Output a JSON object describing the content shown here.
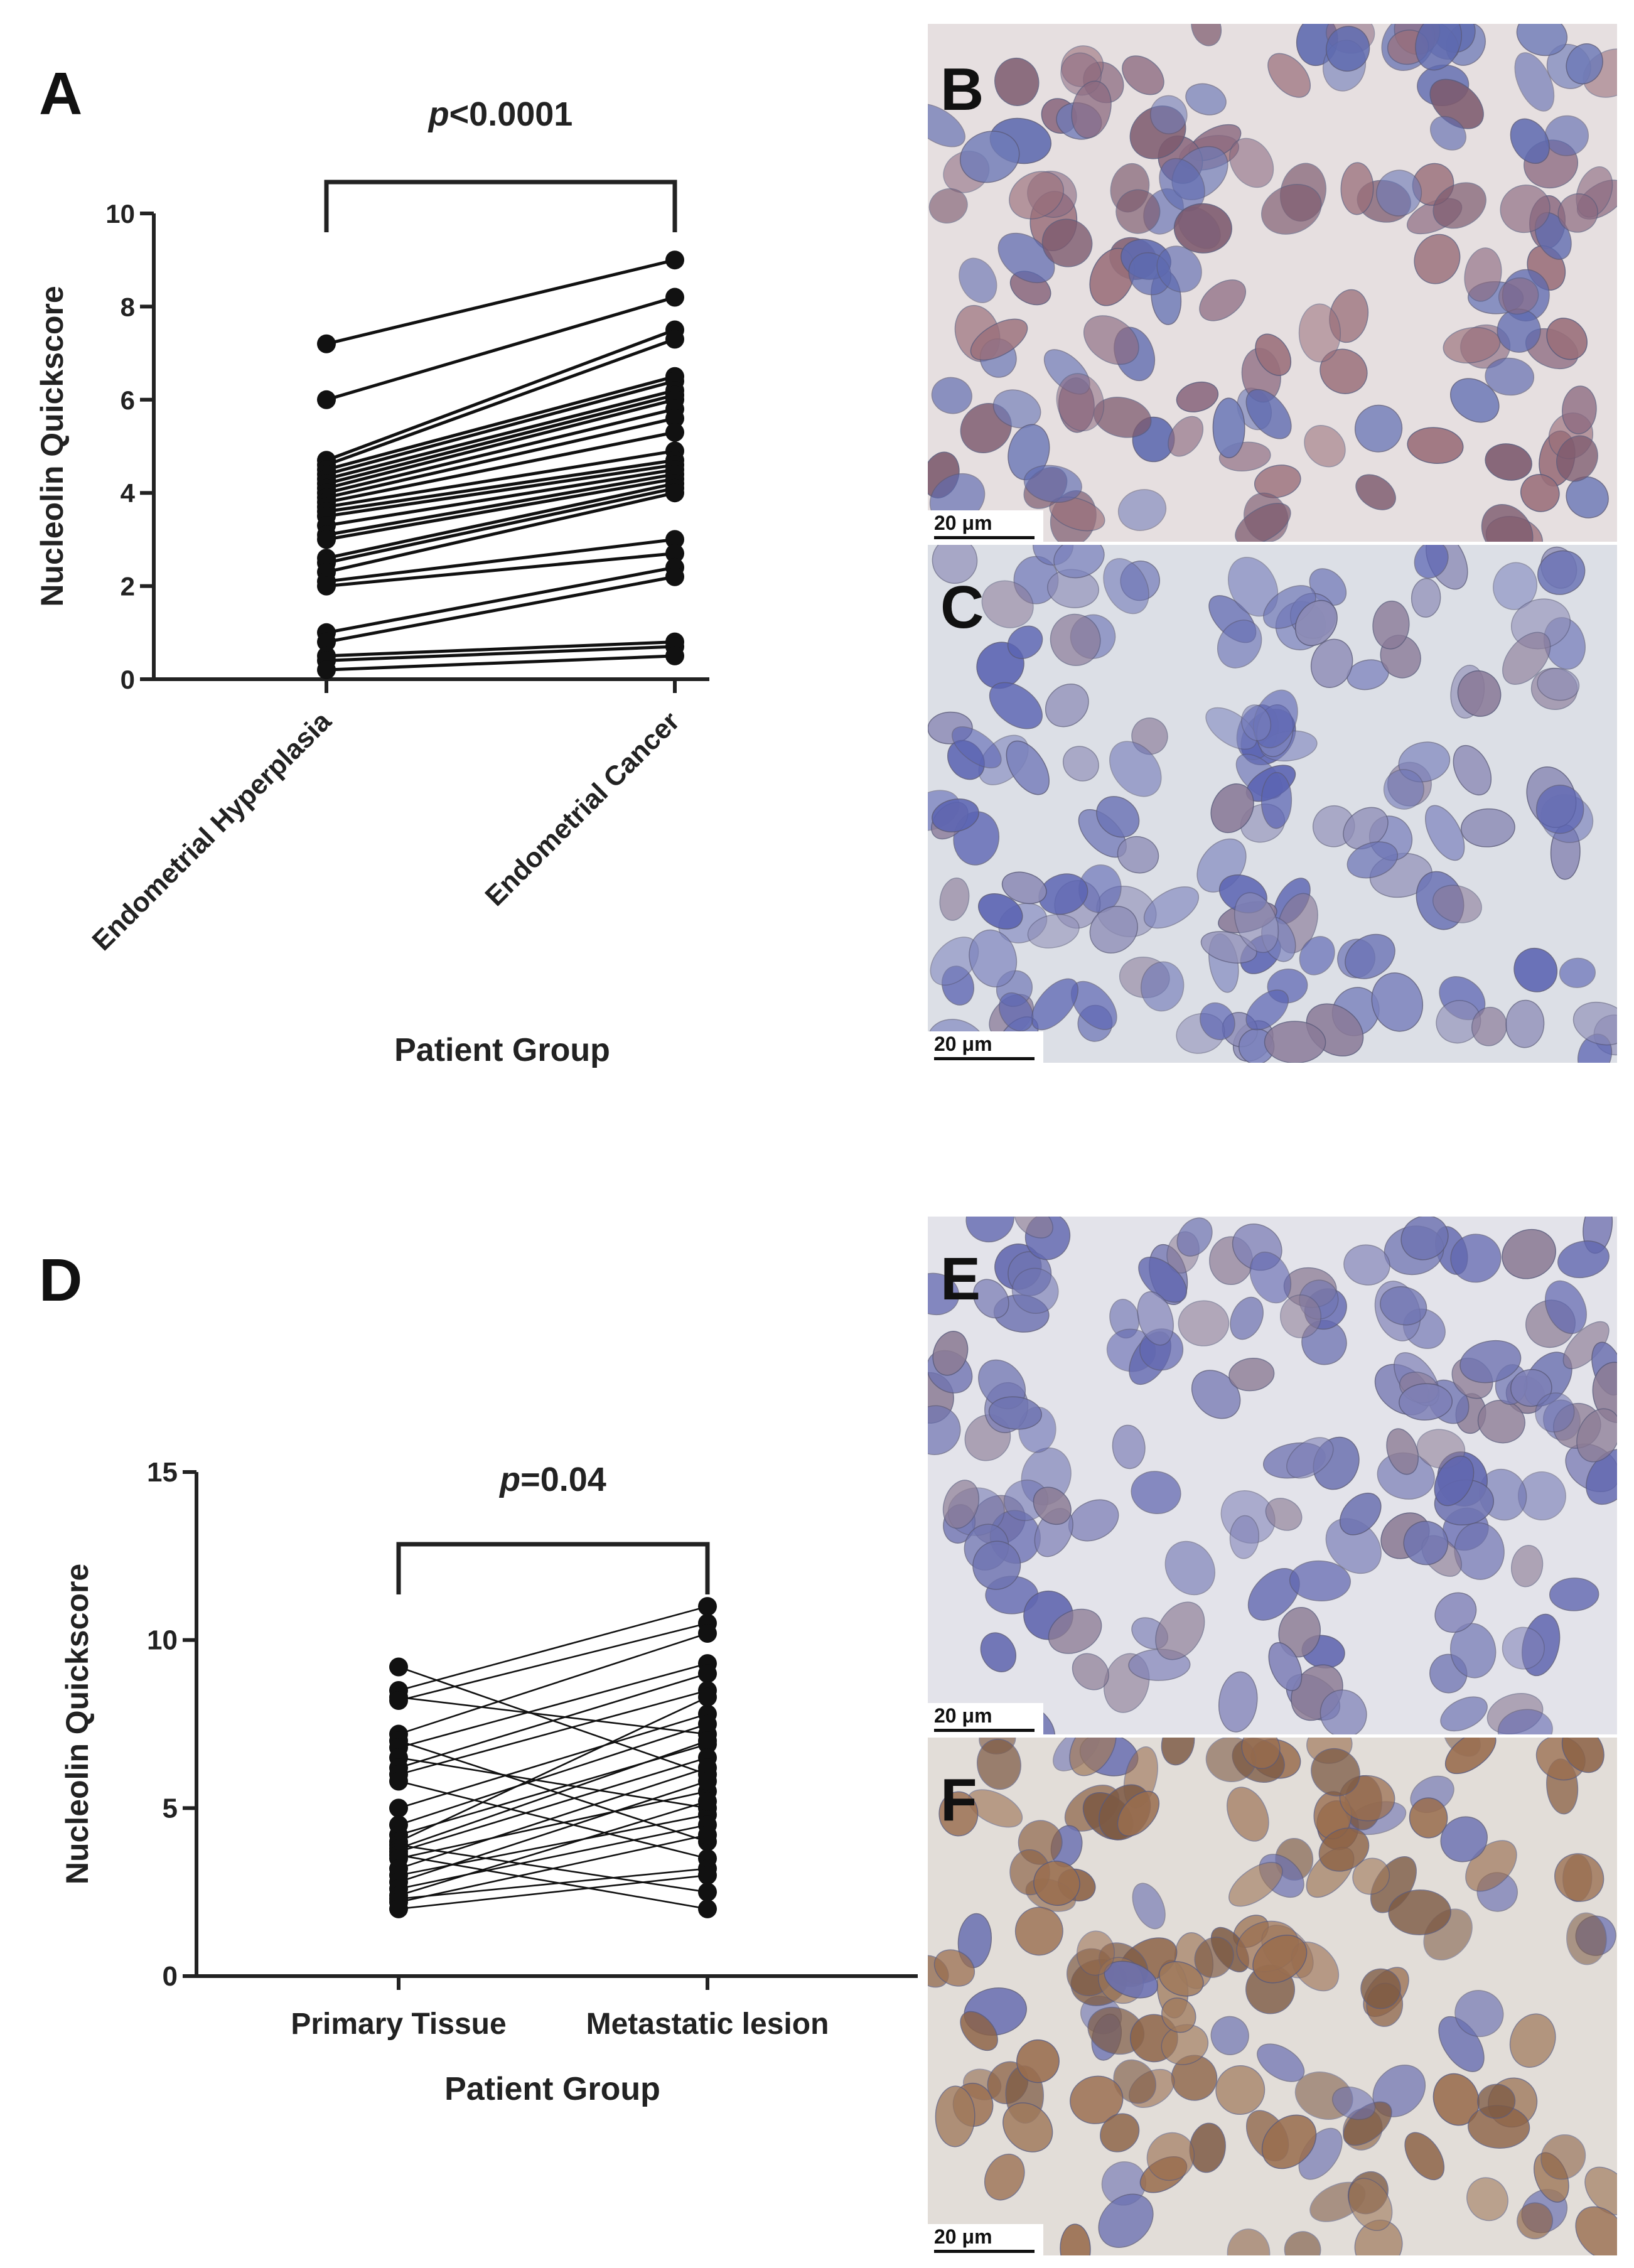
{
  "panels": {
    "A": {
      "letter": "A"
    },
    "B": {
      "letter": "B",
      "scale_label": "20 μm"
    },
    "C": {
      "letter": "C",
      "scale_label": "20 μm"
    },
    "D": {
      "letter": "D"
    },
    "E": {
      "letter": "E",
      "scale_label": "20 μm"
    },
    "F": {
      "letter": "F",
      "scale_label": "20 μm"
    }
  },
  "micrograph_colors": {
    "B": {
      "bg": "#e6dfe0",
      "nuclei": [
        "#8c6a80",
        "#7d5a6e",
        "#6f7bb8",
        "#9a6f7a",
        "#5e6ab0"
      ]
    },
    "C": {
      "bg": "#dcdfe6",
      "nuclei": [
        "#7b82bd",
        "#6c74b6",
        "#8a7a98",
        "#5b64b3",
        "#8e8db7"
      ]
    },
    "E": {
      "bg": "#e3e3ea",
      "nuclei": [
        "#7e80b7",
        "#6f74b2",
        "#8c7c95",
        "#6167b0"
      ]
    },
    "F": {
      "bg": "#e2ddd8",
      "nuclei": [
        "#9a6e4f",
        "#8c6245",
        "#a07a5c",
        "#7d5a44",
        "#6a70b2"
      ]
    }
  },
  "chart_data": [
    {
      "type": "line",
      "panel": "A",
      "title": "",
      "xlabel": "Patient Group",
      "ylabel": "Nucleolin Quickscore",
      "categories": [
        "Endometrial Hyperplasia",
        "Endometrial Cancer"
      ],
      "ylim": [
        0,
        10
      ],
      "yticks": [
        0,
        2,
        4,
        6,
        8,
        10
      ],
      "annotation": {
        "italic": "p",
        "text": "<0.0001"
      },
      "pairs": [
        [
          7.2,
          9.0
        ],
        [
          6.0,
          8.2
        ],
        [
          4.7,
          7.5
        ],
        [
          4.6,
          7.3
        ],
        [
          4.5,
          6.5
        ],
        [
          4.4,
          6.4
        ],
        [
          4.3,
          6.2
        ],
        [
          4.2,
          6.1
        ],
        [
          4.1,
          6.0
        ],
        [
          4.0,
          5.8
        ],
        [
          3.9,
          5.6
        ],
        [
          3.8,
          5.3
        ],
        [
          3.7,
          4.9
        ],
        [
          3.6,
          4.7
        ],
        [
          3.5,
          4.6
        ],
        [
          3.3,
          4.5
        ],
        [
          3.1,
          4.4
        ],
        [
          3.0,
          4.3
        ],
        [
          2.6,
          4.2
        ],
        [
          2.5,
          4.1
        ],
        [
          2.3,
          4.0
        ],
        [
          2.1,
          3.0
        ],
        [
          2.0,
          2.7
        ],
        [
          1.0,
          2.4
        ],
        [
          0.8,
          2.2
        ],
        [
          0.5,
          0.8
        ],
        [
          0.4,
          0.7
        ],
        [
          0.2,
          0.5
        ]
      ]
    },
    {
      "type": "line",
      "panel": "D",
      "title": "",
      "xlabel": "Patient Group",
      "ylabel": "Nucleolin Quickscore",
      "categories": [
        "Primary Tissue",
        "Metastatic lesion"
      ],
      "ylim": [
        0,
        15
      ],
      "yticks": [
        0,
        5,
        10,
        15
      ],
      "annotation": {
        "italic": "p",
        "text": "=0.04"
      },
      "pairs": [
        [
          9.2,
          6.0
        ],
        [
          8.5,
          11.0
        ],
        [
          8.3,
          7.2
        ],
        [
          8.2,
          10.5
        ],
        [
          7.2,
          10.2
        ],
        [
          7.0,
          4.0
        ],
        [
          6.8,
          9.3
        ],
        [
          6.5,
          5.0
        ],
        [
          6.2,
          9.0
        ],
        [
          6.0,
          8.5
        ],
        [
          5.8,
          3.5
        ],
        [
          5.0,
          7.8
        ],
        [
          4.5,
          7.5
        ],
        [
          4.2,
          6.9
        ],
        [
          4.0,
          8.3
        ],
        [
          3.9,
          2.5
        ],
        [
          3.8,
          7.0
        ],
        [
          3.7,
          6.5
        ],
        [
          3.6,
          2.0
        ],
        [
          3.5,
          5.5
        ],
        [
          3.2,
          6.2
        ],
        [
          3.0,
          4.8
        ],
        [
          2.8,
          5.8
        ],
        [
          2.6,
          4.5
        ],
        [
          2.4,
          5.2
        ],
        [
          2.3,
          3.2
        ],
        [
          2.2,
          4.2
        ],
        [
          2.0,
          3.0
        ]
      ]
    }
  ]
}
